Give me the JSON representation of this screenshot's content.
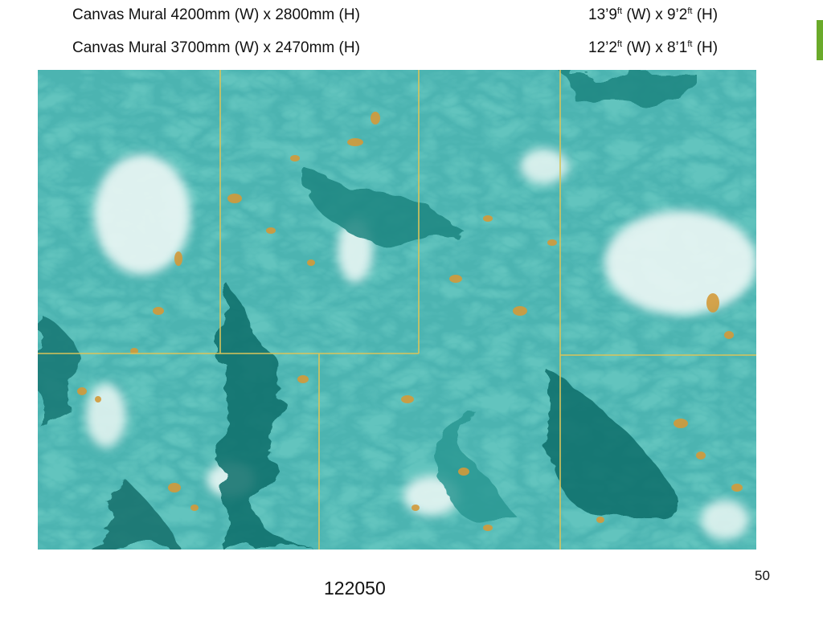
{
  "specs": {
    "row1": {
      "metric": "Canvas Mural 4200mm (W) x 2800mm (H)",
      "imperial": {
        "w_main": "13’9",
        "w_sup": "ft",
        "w_rest": " (W) x 9’2",
        "h_sup": "ft",
        "h_rest": " (H)"
      }
    },
    "row2": {
      "metric": "Canvas Mural 3700mm (W) x 2470mm (H)",
      "imperial": {
        "w_main": "12’2",
        "w_sup": "ft",
        "w_rest": " (W) x 8’1",
        "h_sup": "ft",
        "h_rest": "  (H)"
      }
    }
  },
  "product_code": "122050",
  "page_number": "50",
  "colors": {
    "accent_green": "#6aaa2a",
    "teal_base": "#5fc3bd",
    "deep_teal": "#0f6e6b",
    "gold": "#d39a3a",
    "panel_line": "#d9c45a"
  }
}
